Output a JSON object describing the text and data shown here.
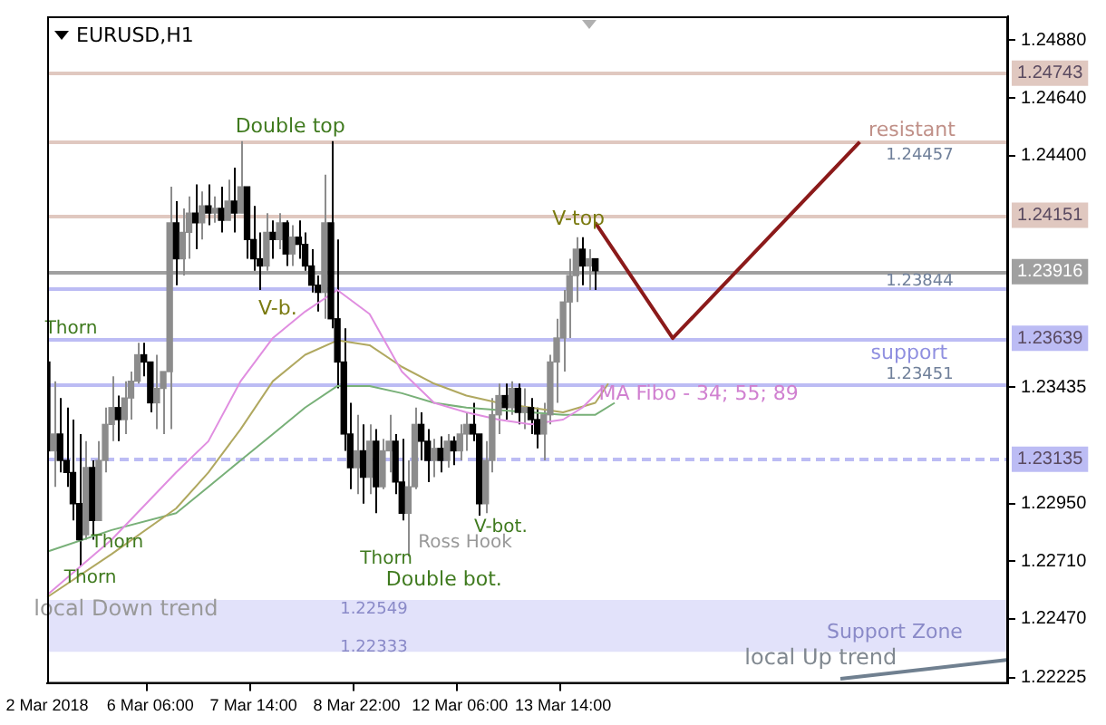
{
  "chart_data": {
    "type": "candlestick",
    "title": "EURUSD,H1",
    "categories": [
      "2 Mar 2018",
      null,
      null,
      null,
      null,
      null,
      null,
      null,
      null,
      null,
      null,
      null,
      null,
      null,
      null,
      null,
      "6 Mar 06:00",
      null,
      null,
      null,
      null,
      null,
      null,
      null,
      null,
      null,
      null,
      null,
      null,
      null,
      null,
      null,
      "7 Mar 14:00",
      null,
      null,
      null,
      null,
      null,
      null,
      null,
      null,
      null,
      null,
      null,
      null,
      null,
      null,
      null,
      "8 Mar 22:00",
      null,
      null,
      null,
      null,
      null,
      null,
      null,
      null,
      null,
      null,
      null,
      null,
      null,
      null,
      null,
      "12 Mar 06:00",
      null,
      null,
      null,
      null,
      null,
      null,
      null,
      null,
      null,
      null,
      null,
      null,
      null,
      null,
      null,
      "13 Mar 14:00",
      null,
      null,
      null,
      null,
      null,
      null,
      null,
      null,
      null,
      null,
      null,
      null,
      null,
      null,
      null,
      null,
      null,
      null,
      null,
      null,
      null,
      null,
      null,
      null,
      null,
      null,
      null,
      null,
      null,
      null,
      null,
      null,
      null,
      null,
      null,
      null,
      null,
      null,
      null,
      null,
      null,
      null,
      null,
      null,
      null,
      null,
      null,
      null,
      null,
      null,
      null,
      null,
      null,
      null,
      null,
      null,
      null,
      null,
      null,
      null,
      null,
      null,
      null,
      null,
      null,
      null,
      null,
      null,
      null
    ],
    "ylim": [
      1.222,
      1.2498
    ],
    "yticks": [
      {
        "value": 1.2488,
        "label": "1.24880"
      },
      {
        "value": 1.2464,
        "label": "1.24640"
      },
      {
        "value": 1.244,
        "label": "1.24400"
      },
      {
        "value": 1.23435,
        "label": "1.23435"
      },
      {
        "value": 1.2295,
        "label": "1.22950"
      },
      {
        "value": 1.2271,
        "label": "1.22710"
      },
      {
        "value": 1.2247,
        "label": "1.22470"
      },
      {
        "value": 1.22225,
        "label": "1.22225"
      }
    ],
    "series": [
      {
        "colors": [
          "#000000",
          "#8c8c8c",
          "#000000",
          "#000000",
          "#000000",
          "#000000",
          "#8c8c8c",
          "#000000",
          "#8c8c8c",
          "#8c8c8c",
          "#8c8c8c",
          "#000000",
          "#8c8c8c",
          "#8c8c8c",
          "#8c8c8c",
          "#000000",
          "#000000",
          "#8c8c8c",
          "#8c8c8c",
          "#8c8c8c",
          "#000000",
          "#8c8c8c",
          "#8c8c8c",
          "#000000",
          "#8c8c8c",
          "#000000",
          "#8c8c8c",
          "#000000",
          "#8c8c8c",
          "#000000",
          "#8c8c8c",
          "#000000",
          "#000000",
          "#000000",
          "#8c8c8c",
          "#000000",
          "#8c8c8c",
          "#000000",
          "#8c8c8c",
          "#000000",
          "#000000",
          "#000000",
          "#000000",
          "#8c8c8c",
          "#000000",
          "#000000",
          "#000000",
          "#000000",
          "#8c8c8c",
          "#000000",
          "#8c8c8c",
          "#000000",
          "#8c8c8c",
          "#8c8c8c",
          "#000000",
          "#000000",
          "#8c8c8c",
          "#8c8c8c",
          "#000000",
          "#000000",
          "#8c8c8c",
          "#000000",
          "#8c8c8c",
          "#000000",
          "#8c8c8c",
          "#8c8c8c",
          "#000000",
          "#000000",
          "#8c8c8c",
          "#8c8c8c",
          "#8c8c8c",
          "#000000",
          "#8c8c8c",
          "#000000",
          "#8c8c8c",
          "#000000",
          "#000000",
          "#8c8c8c",
          "#8c8c8c",
          "#8c8c8c",
          "#8c8c8c",
          "#8c8c8c",
          "#8c8c8c",
          "#000000",
          "#8c8c8c",
          "#000000",
          null,
          null,
          null,
          null,
          null,
          null,
          null,
          null,
          null,
          null,
          null,
          null,
          null,
          null,
          null,
          null,
          null,
          null,
          null,
          null,
          null,
          null,
          null,
          null,
          null,
          null,
          null,
          null,
          null,
          null,
          null,
          null,
          null,
          null,
          null,
          null,
          null,
          null,
          null,
          null,
          null,
          null,
          null,
          null,
          null,
          null,
          null,
          null,
          null,
          null,
          null,
          null,
          null,
          null,
          null,
          null,
          null,
          null,
          null,
          null,
          null,
          null,
          null,
          null
        ],
        "ohlc": [
          [
            1.2354,
            1.2364,
            1.2299,
            1.2317
          ],
          [
            1.2317,
            1.2346,
            1.2302,
            1.2324
          ],
          [
            1.2324,
            1.2339,
            1.2308,
            1.2313
          ],
          [
            1.2313,
            1.2335,
            1.2302,
            1.2308
          ],
          [
            1.2308,
            1.233,
            1.2288,
            1.2295
          ],
          [
            1.2295,
            1.2324,
            1.2269,
            1.228
          ],
          [
            1.2282,
            1.2321,
            1.228,
            1.231
          ],
          [
            1.231,
            1.2313,
            1.228,
            1.2288
          ],
          [
            1.2288,
            1.2321,
            1.2288,
            1.2313
          ],
          [
            1.2313,
            1.2335,
            1.2308,
            1.2328
          ],
          [
            1.2328,
            1.2348,
            1.2321,
            1.2335
          ],
          [
            1.2335,
            1.234,
            1.2321,
            1.233
          ],
          [
            1.233,
            1.2346,
            1.2324,
            1.2339
          ],
          [
            1.2339,
            1.235,
            1.233,
            1.2346
          ],
          [
            1.2346,
            1.2362,
            1.2345,
            1.2357
          ],
          [
            1.2357,
            1.2362,
            1.2348,
            1.2354
          ],
          [
            1.2354,
            1.2354,
            1.2333,
            1.2337
          ],
          [
            1.2337,
            1.2357,
            1.2326,
            1.2343
          ],
          [
            1.2343,
            1.235,
            1.2324,
            1.235
          ],
          [
            1.235,
            1.2427,
            1.2326,
            1.2412
          ],
          [
            1.2412,
            1.2421,
            1.2386,
            1.2397
          ],
          [
            1.2397,
            1.2418,
            1.239,
            1.2408
          ],
          [
            1.2408,
            1.2423,
            1.2397,
            1.2416
          ],
          [
            1.2416,
            1.2428,
            1.2401,
            1.2412
          ],
          [
            1.2412,
            1.2425,
            1.2405,
            1.2419
          ],
          [
            1.2419,
            1.2428,
            1.2411,
            1.2416
          ],
          [
            1.2416,
            1.2423,
            1.2412,
            1.2418
          ],
          [
            1.2418,
            1.2427,
            1.2408,
            1.2413
          ],
          [
            1.2413,
            1.243,
            1.2413,
            1.2421
          ],
          [
            1.2421,
            1.2435,
            1.2408,
            1.2416
          ],
          [
            1.2416,
            1.2446,
            1.2416,
            1.2427
          ],
          [
            1.2427,
            1.2427,
            1.2397,
            1.2405
          ],
          [
            1.2405,
            1.2419,
            1.2392,
            1.2397
          ],
          [
            1.2397,
            1.2408,
            1.2384,
            1.2394
          ],
          [
            1.2394,
            1.2416,
            1.2392,
            1.2408
          ],
          [
            1.2408,
            1.2413,
            1.2397,
            1.2405
          ],
          [
            1.2405,
            1.2416,
            1.2401,
            1.2412
          ],
          [
            1.2412,
            1.2413,
            1.2394,
            1.2399
          ],
          [
            1.2399,
            1.2411,
            1.2394,
            1.2406
          ],
          [
            1.2406,
            1.2413,
            1.2397,
            1.2403
          ],
          [
            1.2403,
            1.2408,
            1.2392,
            1.2394
          ],
          [
            1.2394,
            1.2401,
            1.2383,
            1.2386
          ],
          [
            1.2386,
            1.239,
            1.2375,
            1.2383
          ],
          [
            1.2383,
            1.2432,
            1.2372,
            1.2412
          ],
          [
            1.2412,
            1.2446,
            1.2368,
            1.2372
          ],
          [
            1.2372,
            1.2405,
            1.2343,
            1.2354
          ],
          [
            1.2354,
            1.2368,
            1.2317,
            1.2324
          ],
          [
            1.2324,
            1.2337,
            1.2301,
            1.231
          ],
          [
            1.231,
            1.2332,
            1.2299,
            1.2317
          ],
          [
            1.2317,
            1.2328,
            1.2295,
            1.2306
          ],
          [
            1.2306,
            1.2328,
            1.2299,
            1.2321
          ],
          [
            1.2321,
            1.2326,
            1.2291,
            1.2302
          ],
          [
            1.2302,
            1.2322,
            1.2301,
            1.2317
          ],
          [
            1.2317,
            1.2332,
            1.2308,
            1.2321
          ],
          [
            1.2321,
            1.2324,
            1.2299,
            1.2304
          ],
          [
            1.2304,
            1.2322,
            1.2288,
            1.2291
          ],
          [
            1.2291,
            1.2313,
            1.2273,
            1.2302
          ],
          [
            1.2302,
            1.2335,
            1.2301,
            1.2328
          ],
          [
            1.2328,
            1.2333,
            1.2313,
            1.2321
          ],
          [
            1.2321,
            1.2326,
            1.2304,
            1.2313
          ],
          [
            1.2313,
            1.2322,
            1.2306,
            1.2318
          ],
          [
            1.2318,
            1.2323,
            1.2308,
            1.2313
          ],
          [
            1.2313,
            1.2324,
            1.231,
            1.2321
          ],
          [
            1.2321,
            1.2323,
            1.2311,
            1.2317
          ],
          [
            1.2317,
            1.2328,
            1.2313,
            1.2324
          ],
          [
            1.2324,
            1.2333,
            1.2317,
            1.2328
          ],
          [
            1.2328,
            1.2337,
            1.2321,
            1.2324
          ],
          [
            1.2324,
            1.2324,
            1.229,
            1.2295
          ],
          [
            1.2295,
            1.2321,
            1.2291,
            1.2313
          ],
          [
            1.2313,
            1.2339,
            1.2308,
            1.2332
          ],
          [
            1.2332,
            1.2345,
            1.2324,
            1.234
          ],
          [
            1.234,
            1.2345,
            1.233,
            1.2335
          ],
          [
            1.2335,
            1.2346,
            1.2332,
            1.2343
          ],
          [
            1.2343,
            1.2345,
            1.2328,
            1.2333
          ],
          [
            1.2333,
            1.2343,
            1.2326,
            1.2335
          ],
          [
            1.2335,
            1.2339,
            1.2324,
            1.233
          ],
          [
            1.233,
            1.2335,
            1.2318,
            1.2324
          ],
          [
            1.2324,
            1.2337,
            1.2313,
            1.2332
          ],
          [
            1.2332,
            1.2357,
            1.2328,
            1.2354
          ],
          [
            1.2354,
            1.2372,
            1.2337,
            1.2364
          ],
          [
            1.2364,
            1.2384,
            1.235,
            1.2379
          ],
          [
            1.2379,
            1.2397,
            1.2364,
            1.239
          ],
          [
            1.239,
            1.2406,
            1.2379,
            1.2401
          ],
          [
            1.2401,
            1.2406,
            1.2386,
            1.2394
          ],
          [
            1.2394,
            1.2401,
            1.2384,
            1.2397
          ],
          [
            1.2397,
            1.2397,
            1.2384,
            1.2392
          ],
          null,
          null,
          null,
          null,
          null,
          null,
          null,
          null,
          null,
          null,
          null,
          null,
          null,
          null,
          null,
          null,
          null,
          null,
          null,
          null,
          null,
          null,
          null,
          null,
          null,
          null,
          null,
          null,
          null,
          null,
          null,
          null,
          null,
          null,
          null,
          null,
          null,
          null,
          null,
          null,
          null,
          null,
          null,
          null,
          null,
          null,
          null,
          null,
          null,
          null,
          null,
          null,
          null,
          null,
          null,
          null,
          null,
          null,
          null,
          null,
          null,
          null,
          null,
          null
        ]
      },
      {
        "type": "line",
        "color": "#e08ee0",
        "values": [
          1.2257,
          null,
          null,
          null,
          null,
          null,
          null,
          null,
          null,
          null,
          1.228,
          null,
          null,
          null,
          null,
          null,
          null,
          null,
          null,
          null,
          1.2308,
          null,
          null,
          null,
          null,
          1.2321,
          null,
          null,
          null,
          null,
          1.2346,
          null,
          null,
          null,
          null,
          1.2364,
          null,
          null,
          null,
          null,
          1.2375,
          null,
          null,
          null,
          null,
          1.2384,
          null,
          null,
          null,
          null,
          1.2374,
          null,
          null,
          null,
          null,
          1.235,
          null,
          null,
          null,
          null,
          1.2337,
          null,
          null,
          null,
          null,
          1.2333,
          null,
          null,
          null,
          null,
          1.233,
          null,
          null,
          null,
          null,
          1.2328,
          null,
          null,
          null,
          null,
          1.233,
          null,
          null,
          1.2335,
          null,
          null,
          1.2343,
          null,
          null,
          null,
          null,
          null,
          null,
          null,
          null,
          null,
          null,
          null,
          null,
          null,
          null,
          null,
          null,
          null,
          null,
          null,
          null,
          null,
          null,
          null,
          null,
          null,
          null,
          null,
          null,
          null,
          null,
          null,
          null,
          null,
          null,
          null,
          null,
          null,
          null,
          null,
          null,
          null,
          null,
          null,
          null,
          null,
          null,
          null,
          null,
          null,
          null,
          null,
          null,
          null,
          null,
          null,
          null,
          null,
          null,
          null,
          null,
          null,
          null,
          null
        ]
      },
      {
        "type": "line",
        "color": "#b0a860",
        "values": [
          1.2256,
          null,
          null,
          null,
          null,
          null,
          null,
          null,
          null,
          null,
          1.2274,
          null,
          null,
          null,
          null,
          null,
          null,
          null,
          null,
          null,
          1.2293,
          null,
          null,
          null,
          null,
          1.2308,
          null,
          null,
          null,
          null,
          1.2326,
          null,
          null,
          null,
          null,
          1.2346,
          null,
          null,
          null,
          null,
          1.2357,
          null,
          null,
          null,
          null,
          1.2363,
          null,
          null,
          null,
          null,
          1.2361,
          null,
          null,
          null,
          null,
          1.2352,
          null,
          null,
          null,
          null,
          1.2345,
          null,
          null,
          null,
          null,
          1.234,
          null,
          null,
          null,
          null,
          1.2337,
          null,
          null,
          null,
          null,
          1.2335,
          null,
          null,
          null,
          null,
          1.2333,
          null,
          null,
          null,
          null,
          1.2337,
          null,
          1.2345,
          null,
          null,
          null,
          null,
          null,
          null,
          null,
          null,
          null,
          null,
          null,
          null,
          null,
          null,
          null,
          null,
          null,
          null,
          null,
          null,
          null,
          null,
          null,
          null,
          null,
          null,
          null,
          null,
          null,
          null,
          null,
          null,
          null,
          null,
          null,
          null,
          null,
          null,
          null,
          null,
          null,
          null,
          null,
          null,
          null,
          null,
          null,
          null,
          null,
          null,
          null,
          null,
          null,
          null,
          null,
          null,
          null,
          null,
          null,
          null,
          null,
          null
        ]
      },
      {
        "type": "line",
        "color": "#78b078",
        "values": [
          1.2275,
          null,
          null,
          null,
          null,
          null,
          null,
          null,
          null,
          null,
          1.2284,
          null,
          null,
          null,
          null,
          null,
          null,
          null,
          null,
          null,
          1.2291,
          null,
          null,
          null,
          null,
          1.2302,
          null,
          null,
          null,
          null,
          1.2313,
          null,
          null,
          null,
          null,
          1.2324,
          null,
          null,
          null,
          null,
          1.2335,
          null,
          null,
          null,
          null,
          1.2344,
          null,
          null,
          null,
          null,
          1.2344,
          null,
          null,
          null,
          null,
          1.2341,
          null,
          null,
          null,
          null,
          1.2337,
          null,
          null,
          null,
          null,
          1.2335,
          null,
          null,
          null,
          null,
          1.2334,
          null,
          null,
          null,
          null,
          1.2333,
          null,
          null,
          null,
          null,
          1.2332,
          null,
          null,
          null,
          null,
          1.2332,
          null,
          null,
          1.2337,
          null,
          null,
          null,
          null,
          null,
          null,
          null,
          null,
          null,
          null,
          null,
          null,
          null,
          null,
          null,
          null,
          null,
          null,
          null,
          null,
          null,
          null,
          null,
          null,
          null,
          null,
          null,
          null,
          null,
          null,
          null,
          null,
          null,
          null,
          null,
          null,
          null,
          null,
          null,
          null,
          null,
          null,
          null,
          null,
          null,
          null,
          null,
          null,
          null,
          null,
          null,
          null,
          null,
          null,
          null,
          null,
          null,
          null,
          null,
          null,
          null
        ]
      },
      {
        "type": "line",
        "color": "#8b1a1a",
        "values": [
          null,
          null,
          null,
          null,
          null,
          null,
          null,
          null,
          null,
          null,
          null,
          null,
          null,
          null,
          null,
          null,
          null,
          null,
          null,
          null,
          null,
          null,
          null,
          null,
          null,
          null,
          null,
          null,
          null,
          null,
          null,
          null,
          null,
          null,
          null,
          null,
          null,
          null,
          null,
          null,
          null,
          null,
          null,
          null,
          null,
          null,
          null,
          null,
          null,
          null,
          null,
          null,
          null,
          null,
          null,
          null,
          null,
          null,
          null,
          null,
          null,
          null,
          null,
          null,
          null,
          null,
          null,
          null,
          null,
          null,
          null,
          null,
          null,
          null,
          null,
          null,
          null,
          null,
          null,
          null,
          null,
          null,
          null,
          null,
          null,
          1.2412,
          null,
          null,
          null,
          null,
          null,
          null,
          null,
          null,
          null,
          null,
          null,
          1.23639,
          null,
          null,
          null,
          null,
          null,
          null,
          null,
          null,
          null,
          null,
          null,
          null,
          null,
          null,
          null,
          null,
          null,
          null,
          null,
          null,
          null,
          null,
          null,
          null,
          null,
          null,
          null,
          null,
          1.24457,
          null,
          null,
          null,
          null,
          null,
          null,
          null,
          null,
          null,
          null,
          null,
          null,
          null,
          null,
          null,
          null,
          null,
          null,
          null,
          null,
          null,
          null,
          null
        ]
      },
      {
        "type": "line",
        "color": "#708090",
        "values": [
          null,
          null,
          null,
          null,
          null,
          null,
          null,
          null,
          null,
          null,
          null,
          null,
          null,
          null,
          null,
          null,
          null,
          null,
          null,
          null,
          null,
          null,
          null,
          null,
          null,
          null,
          null,
          null,
          null,
          null,
          null,
          null,
          null,
          null,
          null,
          null,
          null,
          null,
          null,
          null,
          null,
          null,
          null,
          null,
          null,
          null,
          null,
          null,
          null,
          null,
          null,
          null,
          null,
          null,
          null,
          null,
          null,
          null,
          null,
          null,
          null,
          null,
          null,
          null,
          null,
          null,
          null,
          null,
          null,
          null,
          null,
          null,
          null,
          null,
          null,
          null,
          null,
          null,
          null,
          null,
          null,
          null,
          null,
          null,
          null,
          null,
          null,
          null,
          null,
          null,
          null,
          null,
          null,
          null,
          null,
          null,
          null,
          null,
          null,
          null,
          null,
          null,
          null,
          null,
          null,
          null,
          null,
          null,
          null,
          null,
          null,
          null,
          null,
          null,
          null,
          null,
          null,
          null,
          null,
          null,
          null,
          null,
          null,
          1.2222,
          null,
          null,
          null,
          null,
          null,
          null,
          null,
          null,
          null,
          null,
          null,
          null,
          null,
          null,
          null,
          null,
          null,
          null,
          null,
          null,
          null,
          null,
          null,
          null,
          null,
          1.223
        ]
      }
    ],
    "ref_lines": [
      {
        "axis": "y",
        "value": 1.24743,
        "label": "1.24743",
        "color": "#e0c8c0"
      },
      {
        "axis": "y",
        "value": 1.24457,
        "color": "#e0c8c0"
      },
      {
        "axis": "y",
        "value": 1.24151,
        "label": "1.24151",
        "color": "#e0c8c0"
      },
      {
        "axis": "y",
        "value": 1.23916,
        "label": "1.23916",
        "color": "#a0a0a0"
      },
      {
        "axis": "y",
        "value": 1.23844,
        "color": "#bcbcf4"
      },
      {
        "axis": "y",
        "value": 1.23639,
        "label": "1.23639",
        "color": "#bcbcf4"
      },
      {
        "axis": "y",
        "value": 1.23451,
        "color": "#bcbcf4"
      },
      {
        "axis": "y",
        "value": 1.23135,
        "label": "1.23135",
        "color": "#bcbcf4",
        "line_style": "dashed"
      }
    ],
    "bands": [
      {
        "axis": "y",
        "from": 1.22333,
        "to": 1.22549,
        "color": "#e2e2fa"
      }
    ],
    "annotations": [
      "Double top",
      "V-b.",
      "Thorn",
      "Thorn",
      "Thorn",
      "Thorn",
      "Double bot.",
      "Ross Hook",
      "V-bot.",
      "V-top",
      "resistant",
      "1.24457",
      "1.23844",
      "support",
      "1.23451",
      "MA Fibo - 34; 55; 89",
      "local Down trend",
      "1.22549",
      "1.22333",
      "Support Zone",
      "local Up trend"
    ]
  }
}
